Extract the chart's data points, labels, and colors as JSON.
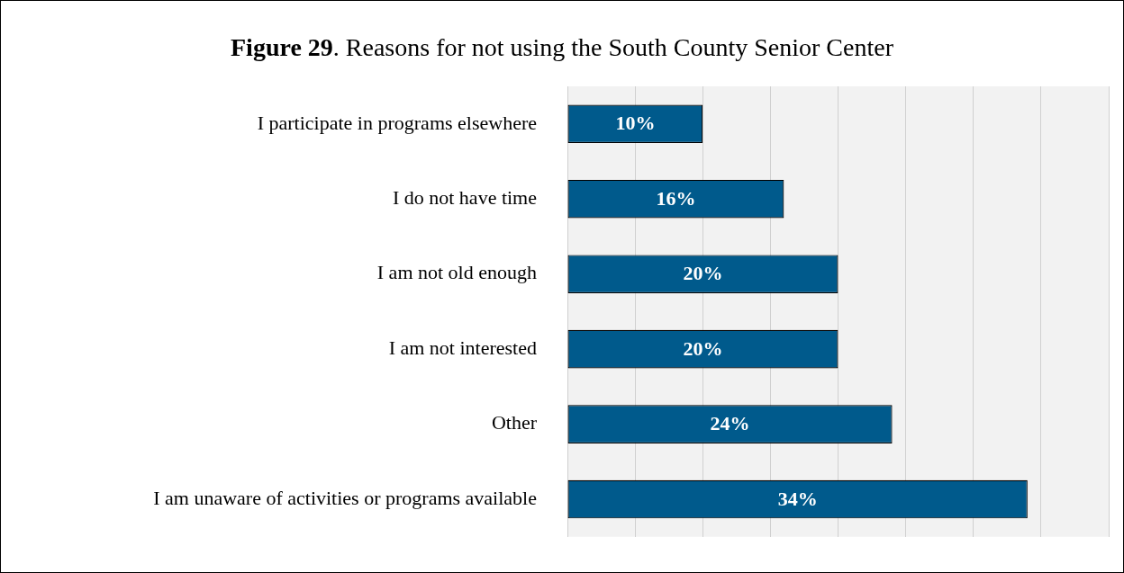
{
  "chart_data": {
    "type": "bar",
    "orientation": "horizontal",
    "title": "Figure 29. Reasons for not using the South County Senior Center",
    "categories": [
      "I participate in programs elsewhere",
      "I do not have time",
      "I am not old enough",
      "I am not interested",
      "Other",
      "I am unaware of activities or programs available"
    ],
    "values": [
      10,
      16,
      20,
      20,
      24,
      34
    ],
    "color": "#005a8c",
    "value_labels": [
      "10%",
      "16%",
      "20%",
      "20%",
      "24%",
      "34%"
    ],
    "xlim": [
      0,
      40
    ],
    "xticks": [
      {
        "value": 0,
        "label": null
      },
      {
        "value": 5,
        "label": null
      },
      {
        "value": 10,
        "label": null
      },
      {
        "value": 15,
        "label": null
      },
      {
        "value": 20,
        "label": null
      },
      {
        "value": 25,
        "label": null
      },
      {
        "value": 30,
        "label": null
      },
      {
        "value": 35,
        "label": null
      },
      {
        "value": 40,
        "label": null
      }
    ],
    "grid": "x",
    "tick_labels": "y",
    "legend": false
  }
}
